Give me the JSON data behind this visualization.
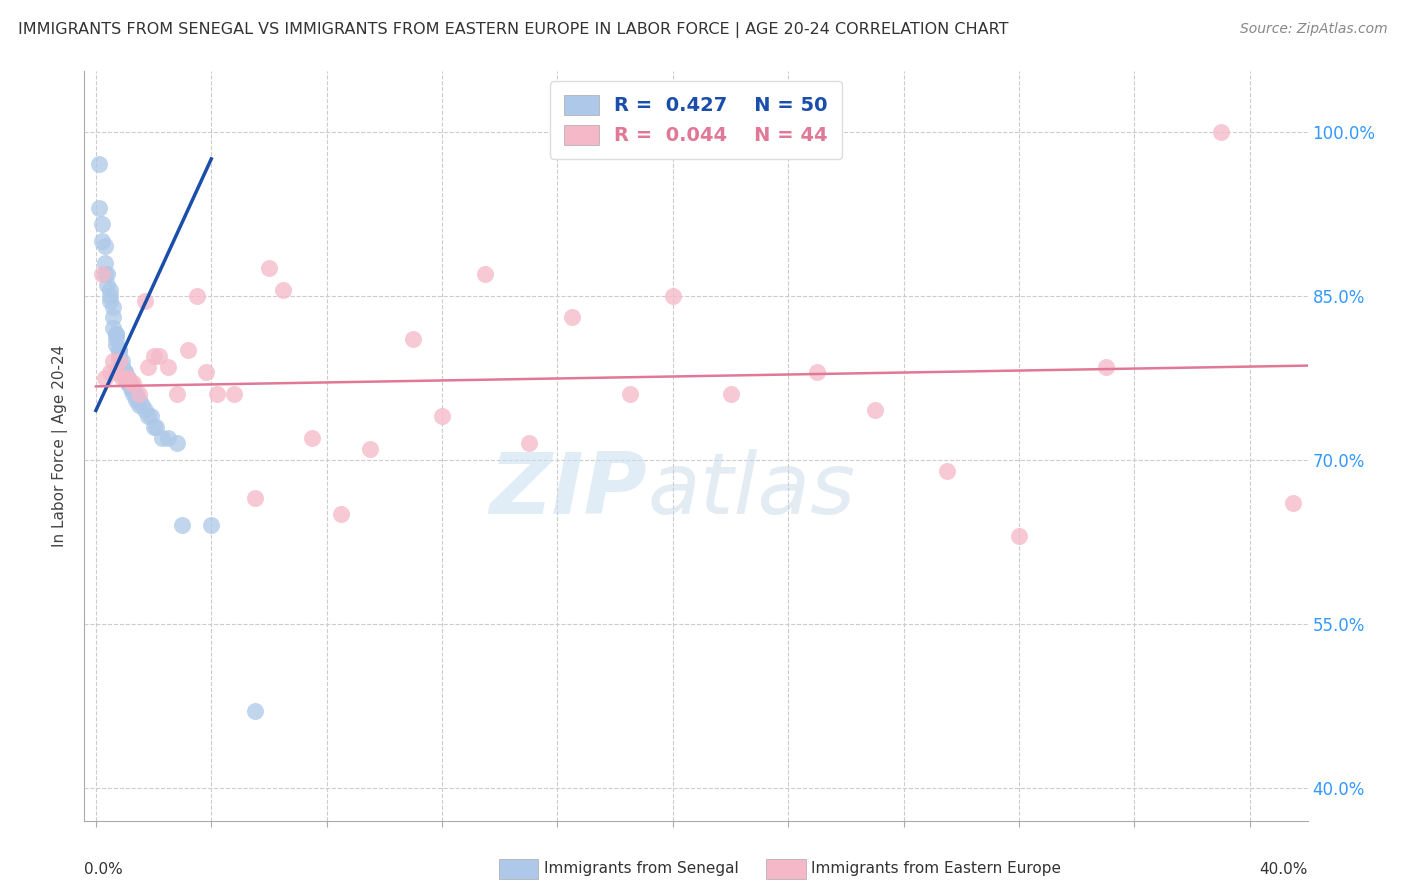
{
  "title": "IMMIGRANTS FROM SENEGAL VS IMMIGRANTS FROM EASTERN EUROPE IN LABOR FORCE | AGE 20-24 CORRELATION CHART",
  "source": "Source: ZipAtlas.com",
  "ylabel": "In Labor Force | Age 20-24",
  "y_tick_labels_right": [
    "100.0%",
    "85.0%",
    "70.0%",
    "55.0%",
    "40.0%"
  ],
  "y_tick_positions": [
    1.0,
    0.85,
    0.7,
    0.55,
    0.4
  ],
  "xlim": [
    -0.004,
    0.42
  ],
  "ylim": [
    0.37,
    1.055
  ],
  "legend_blue_r": "0.427",
  "legend_blue_n": "50",
  "legend_pink_r": "0.044",
  "legend_pink_n": "44",
  "color_blue": "#adc8e8",
  "color_blue_line": "#1a4eaa",
  "color_pink": "#f5b8c8",
  "color_pink_line": "#e07898",
  "watermark_zip": "ZIP",
  "watermark_atlas": "atlas",
  "bottom_label_blue": "Immigrants from Senegal",
  "bottom_label_pink": "Immigrants from Eastern Europe",
  "blue_scatter_x": [
    0.001,
    0.001,
    0.002,
    0.002,
    0.003,
    0.003,
    0.003,
    0.004,
    0.004,
    0.005,
    0.005,
    0.005,
    0.006,
    0.006,
    0.006,
    0.007,
    0.007,
    0.007,
    0.007,
    0.008,
    0.008,
    0.008,
    0.009,
    0.009,
    0.01,
    0.01,
    0.01,
    0.011,
    0.011,
    0.011,
    0.012,
    0.012,
    0.013,
    0.013,
    0.014,
    0.014,
    0.015,
    0.015,
    0.016,
    0.017,
    0.018,
    0.019,
    0.02,
    0.021,
    0.023,
    0.025,
    0.028,
    0.03,
    0.04,
    0.055
  ],
  "blue_scatter_y": [
    0.97,
    0.93,
    0.915,
    0.9,
    0.895,
    0.88,
    0.87,
    0.87,
    0.86,
    0.855,
    0.85,
    0.845,
    0.84,
    0.83,
    0.82,
    0.815,
    0.815,
    0.81,
    0.805,
    0.8,
    0.8,
    0.795,
    0.79,
    0.785,
    0.78,
    0.78,
    0.775,
    0.775,
    0.77,
    0.77,
    0.77,
    0.765,
    0.765,
    0.76,
    0.76,
    0.755,
    0.755,
    0.75,
    0.75,
    0.745,
    0.74,
    0.74,
    0.73,
    0.73,
    0.72,
    0.72,
    0.715,
    0.64,
    0.64,
    0.47
  ],
  "pink_scatter_x": [
    0.002,
    0.003,
    0.005,
    0.006,
    0.007,
    0.008,
    0.009,
    0.01,
    0.011,
    0.012,
    0.013,
    0.015,
    0.017,
    0.018,
    0.02,
    0.022,
    0.025,
    0.028,
    0.032,
    0.035,
    0.038,
    0.042,
    0.048,
    0.055,
    0.06,
    0.065,
    0.075,
    0.085,
    0.095,
    0.11,
    0.12,
    0.135,
    0.15,
    0.165,
    0.185,
    0.2,
    0.22,
    0.25,
    0.27,
    0.295,
    0.32,
    0.35,
    0.39,
    0.415
  ],
  "pink_scatter_y": [
    0.87,
    0.775,
    0.78,
    0.79,
    0.78,
    0.79,
    0.775,
    0.775,
    0.775,
    0.77,
    0.77,
    0.76,
    0.845,
    0.785,
    0.795,
    0.795,
    0.785,
    0.76,
    0.8,
    0.85,
    0.78,
    0.76,
    0.76,
    0.665,
    0.875,
    0.855,
    0.72,
    0.65,
    0.71,
    0.81,
    0.74,
    0.87,
    0.715,
    0.83,
    0.76,
    0.85,
    0.76,
    0.78,
    0.745,
    0.69,
    0.63,
    0.785,
    1.0,
    0.66
  ],
  "blue_line_x": [
    0.0,
    0.04
  ],
  "blue_line_y": [
    0.745,
    0.975
  ],
  "pink_line_x": [
    0.0,
    0.42
  ],
  "pink_line_y": [
    0.767,
    0.786
  ]
}
